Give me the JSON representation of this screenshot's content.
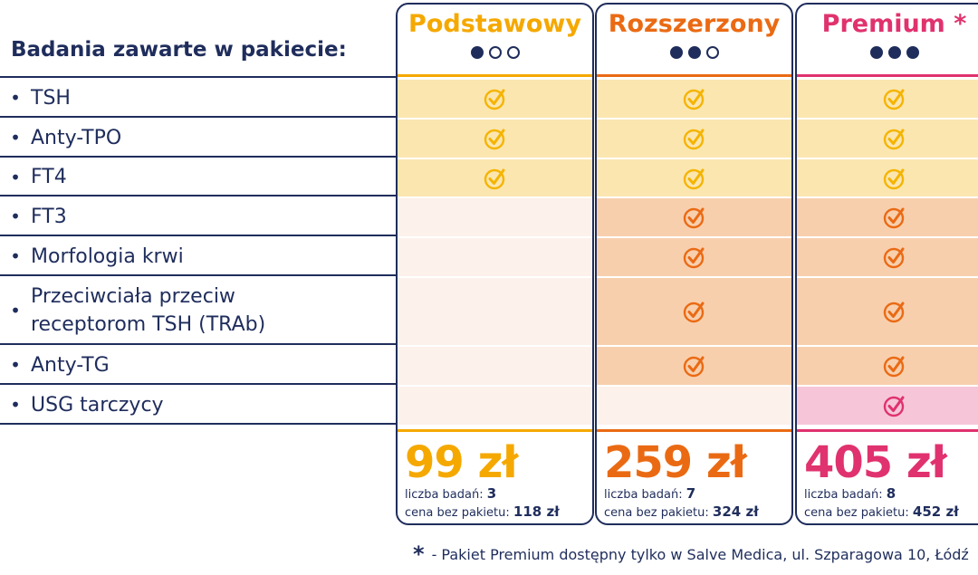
{
  "heading": "Badania zawarte w pakiecie:",
  "bullet": "•",
  "tests": [
    {
      "label": "TSH"
    },
    {
      "label": "Anty-TPO"
    },
    {
      "label": "FT4"
    },
    {
      "label": "FT3"
    },
    {
      "label": "Morfologia krwi"
    },
    {
      "label": "Przeciwciała przeciw receptorom TSH (TRAb)"
    },
    {
      "label": "Anty-TG"
    },
    {
      "label": "USG tarczycy"
    }
  ],
  "packages": [
    {
      "name": "Podstawowy",
      "level": 1,
      "color": "#f5a800",
      "price": "99 zł",
      "count_label": "liczba badań:",
      "count": "3",
      "full_label": "cena bez pakietu:",
      "full_price": "118 zł",
      "included": [
        true,
        true,
        true,
        false,
        false,
        false,
        false,
        false
      ]
    },
    {
      "name": "Rozszerzony",
      "level": 2,
      "color": "#ea6a14",
      "price": "259 zł",
      "count_label": "liczba badań:",
      "count": "7",
      "full_label": "cena bez pakietu:",
      "full_price": "324 zł",
      "included": [
        true,
        true,
        true,
        true,
        true,
        true,
        true,
        false
      ]
    },
    {
      "name": "Premium *",
      "level": 3,
      "color": "#e0326e",
      "price": "405 zł",
      "count_label": "liczba badań:",
      "count": "8",
      "full_label": "cena bez pakietu:",
      "full_price": "452 zł",
      "included": [
        true,
        true,
        true,
        true,
        true,
        true,
        true,
        true
      ]
    }
  ],
  "colors": {
    "navy": "#1f2d5c",
    "yellow_fill": "#fbe6b0",
    "orange_fill": "#f8cfad",
    "pink_fill": "#f6c6d8",
    "empty_fill": "#fdf1ec",
    "check_yellow": "#f5b400",
    "check_orange": "#ea6a14",
    "check_pink": "#e0326e"
  },
  "footnote": {
    "star": "*",
    "text": "- Pakiet Premium dostępny tylko w Salve Medica, ul. Szparagowa 10, Łódź"
  }
}
